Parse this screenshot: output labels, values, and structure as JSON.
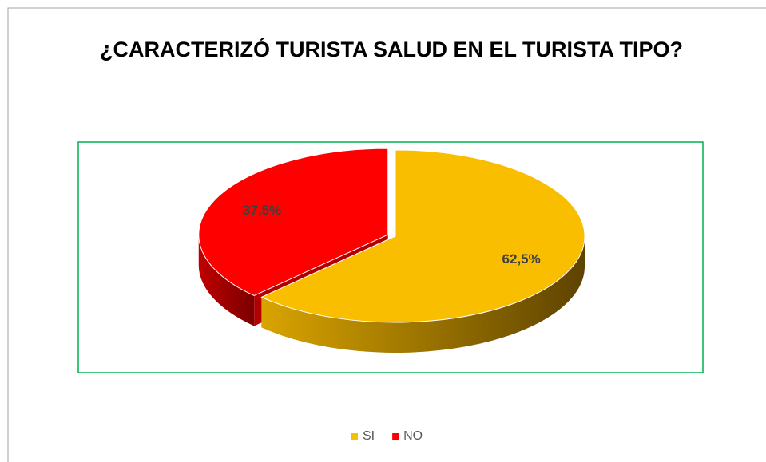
{
  "chart_data": {
    "type": "pie",
    "title": "¿CARACTERIZÓ TURISTA SALUD EN EL TURISTA TIPO?",
    "categories": [
      "SI",
      "NO"
    ],
    "values": [
      62.5,
      37.5
    ],
    "value_labels": [
      "62,5%",
      "37,5%"
    ],
    "colors": [
      "#F9BE00",
      "#FF0000"
    ],
    "legend": "bottom"
  }
}
